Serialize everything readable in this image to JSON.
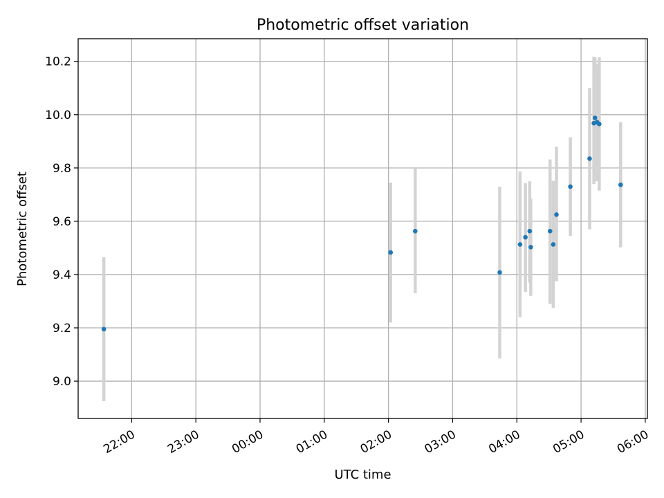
{
  "chart_data": {
    "type": "scatter",
    "title": "Photometric offset variation",
    "xlabel": "UTC time",
    "ylabel": "Photometric offset",
    "x_axis": "time",
    "xlim": [
      "2023-01-01T21:10",
      "2023-01-02T06:02"
    ],
    "ylim": [
      8.86,
      10.285
    ],
    "grid": true,
    "legend": "none",
    "x_ticks": [
      {
        "t": "2023-01-01T22:00",
        "label": "22:00"
      },
      {
        "t": "2023-01-01T23:00",
        "label": "23:00"
      },
      {
        "t": "2023-01-02T00:00",
        "label": "00:00"
      },
      {
        "t": "2023-01-02T01:00",
        "label": "01:00"
      },
      {
        "t": "2023-01-02T02:00",
        "label": "02:00"
      },
      {
        "t": "2023-01-02T03:00",
        "label": "03:00"
      },
      {
        "t": "2023-01-02T04:00",
        "label": "04:00"
      },
      {
        "t": "2023-01-02T05:00",
        "label": "05:00"
      },
      {
        "t": "2023-01-02T06:00",
        "label": "06:00"
      }
    ],
    "y_ticks": [
      {
        "v": 9.0,
        "label": "9.0"
      },
      {
        "v": 9.2,
        "label": "9.2"
      },
      {
        "v": 9.4,
        "label": "9.4"
      },
      {
        "v": 9.6,
        "label": "9.6"
      },
      {
        "v": 9.8,
        "label": "9.8"
      },
      {
        "v": 10.0,
        "label": "10.0"
      },
      {
        "v": 10.2,
        "label": "10.2"
      }
    ],
    "series": [
      {
        "marker_color": "#1f77b4",
        "errorbar_color": "#d3d3d3",
        "points": [
          {
            "t": "2023-01-01T21:34",
            "y": 9.195,
            "low": 8.925,
            "high": 9.465
          },
          {
            "t": "2023-01-02T02:02",
            "y": 9.483,
            "low": 9.22,
            "high": 9.745
          },
          {
            "t": "2023-01-02T02:25",
            "y": 9.563,
            "low": 9.33,
            "high": 9.8
          },
          {
            "t": "2023-01-02T03:44",
            "y": 9.408,
            "low": 9.085,
            "high": 9.73
          },
          {
            "t": "2023-01-02T04:03",
            "y": 9.513,
            "low": 9.24,
            "high": 9.787
          },
          {
            "t": "2023-01-02T04:08",
            "y": 9.54,
            "low": 9.335,
            "high": 9.743
          },
          {
            "t": "2023-01-02T04:12",
            "y": 9.563,
            "low": 9.37,
            "high": 9.75
          },
          {
            "t": "2023-01-02T04:13",
            "y": 9.503,
            "low": 9.32,
            "high": 9.685
          },
          {
            "t": "2023-01-02T04:31",
            "y": 9.563,
            "low": 9.29,
            "high": 9.832
          },
          {
            "t": "2023-01-02T04:34",
            "y": 9.513,
            "low": 9.275,
            "high": 9.752
          },
          {
            "t": "2023-01-02T04:37",
            "y": 9.625,
            "low": 9.375,
            "high": 9.88
          },
          {
            "t": "2023-01-02T04:50",
            "y": 9.73,
            "low": 9.545,
            "high": 9.915
          },
          {
            "t": "2023-01-02T05:08",
            "y": 9.835,
            "low": 9.57,
            "high": 10.1
          },
          {
            "t": "2023-01-02T05:12",
            "y": 9.968,
            "low": 9.74,
            "high": 10.218
          },
          {
            "t": "2023-01-02T05:13",
            "y": 9.988,
            "low": 9.76,
            "high": 10.215
          },
          {
            "t": "2023-01-02T05:15",
            "y": 9.972,
            "low": 9.75,
            "high": 10.19
          },
          {
            "t": "2023-01-02T05:17",
            "y": 9.965,
            "low": 9.715,
            "high": 10.215
          },
          {
            "t": "2023-01-02T05:37",
            "y": 9.737,
            "low": 9.502,
            "high": 9.972
          }
        ]
      }
    ]
  }
}
